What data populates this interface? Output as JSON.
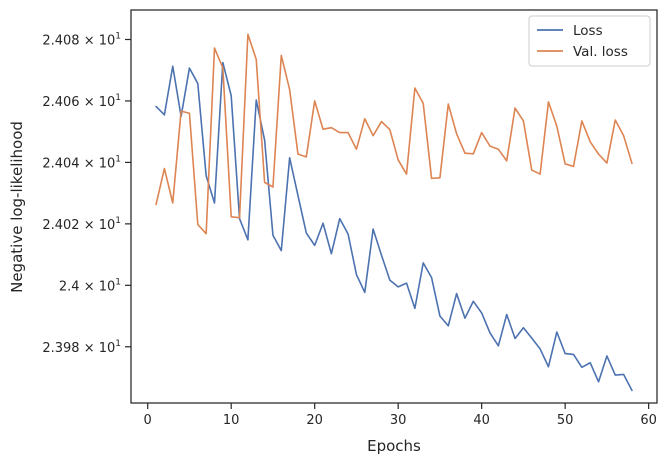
{
  "chart_data": {
    "type": "line",
    "xlabel": "Epochs",
    "ylabel": "Negative log-likelihood",
    "xlim": [
      -2,
      61
    ],
    "ylim": [
      23.9617,
      24.0896
    ],
    "x_ticks": [
      0,
      10,
      20,
      30,
      40,
      50,
      60
    ],
    "y_ticks": [
      {
        "value": 23.98,
        "mantissa": "2.398",
        "base": "10",
        "exp": "1"
      },
      {
        "value": 24.0,
        "mantissa": "2.4",
        "base": "10",
        "exp": "1"
      },
      {
        "value": 24.02,
        "mantissa": "2.402",
        "base": "10",
        "exp": "1"
      },
      {
        "value": 24.04,
        "mantissa": "2.404",
        "base": "10",
        "exp": "1"
      },
      {
        "value": 24.06,
        "mantissa": "2.406",
        "base": "10",
        "exp": "1"
      },
      {
        "value": 24.08,
        "mantissa": "2.408",
        "base": "10",
        "exp": "1"
      }
    ],
    "grid": false,
    "legend_position": "top-right",
    "x": [
      1,
      2,
      3,
      4,
      5,
      6,
      7,
      8,
      9,
      10,
      11,
      12,
      13,
      14,
      15,
      16,
      17,
      18,
      19,
      20,
      21,
      22,
      23,
      24,
      25,
      26,
      27,
      28,
      29,
      30,
      31,
      32,
      33,
      34,
      35,
      36,
      37,
      38,
      39,
      40,
      41,
      42,
      43,
      44,
      45,
      46,
      47,
      48,
      49,
      50,
      51,
      52,
      53,
      54,
      55,
      56,
      57,
      58
    ],
    "series": [
      {
        "name": "Loss",
        "color": "#4c72b0",
        "values": [
          24.0582,
          24.0555,
          24.0713,
          24.055,
          24.0707,
          24.0657,
          24.0357,
          24.0268,
          24.0725,
          24.0617,
          24.0217,
          24.0148,
          24.0603,
          24.0473,
          24.0163,
          24.0113,
          24.0415,
          24.0292,
          24.017,
          24.013,
          24.0202,
          24.0103,
          24.0217,
          24.0167,
          24.0035,
          23.9977,
          24.0183,
          24.0098,
          24.0017,
          23.9995,
          24.0007,
          23.9925,
          24.0073,
          24.0025,
          23.99,
          23.9868,
          23.9973,
          23.9893,
          23.9948,
          23.991,
          23.9845,
          23.9803,
          23.9905,
          23.9827,
          23.9862,
          23.9828,
          23.9793,
          23.9735,
          23.9848,
          23.9778,
          23.9775,
          23.9733,
          23.9748,
          23.9686,
          23.977,
          23.9708,
          23.971,
          23.9658
        ]
      },
      {
        "name": "Val. loss",
        "color": "#dd8452",
        "values": [
          24.0263,
          24.038,
          24.0268,
          24.0567,
          24.056,
          24.0198,
          24.0168,
          24.0772,
          24.0708,
          24.0223,
          24.022,
          24.0817,
          24.0735,
          24.0335,
          24.032,
          24.0748,
          24.0637,
          24.0427,
          24.0418,
          24.06,
          24.0508,
          24.0513,
          24.0497,
          24.0497,
          24.0443,
          24.0542,
          24.0487,
          24.0533,
          24.0507,
          24.0408,
          24.0362,
          24.0642,
          24.0592,
          24.0348,
          24.035,
          24.059,
          24.0493,
          24.043,
          24.0428,
          24.0497,
          24.0453,
          24.0443,
          24.0405,
          24.0577,
          24.0535,
          24.0375,
          24.0362,
          24.0597,
          24.0518,
          24.0395,
          24.0387,
          24.0535,
          24.0467,
          24.0427,
          24.0398,
          24.0538,
          24.0487,
          24.0397
        ]
      }
    ]
  }
}
